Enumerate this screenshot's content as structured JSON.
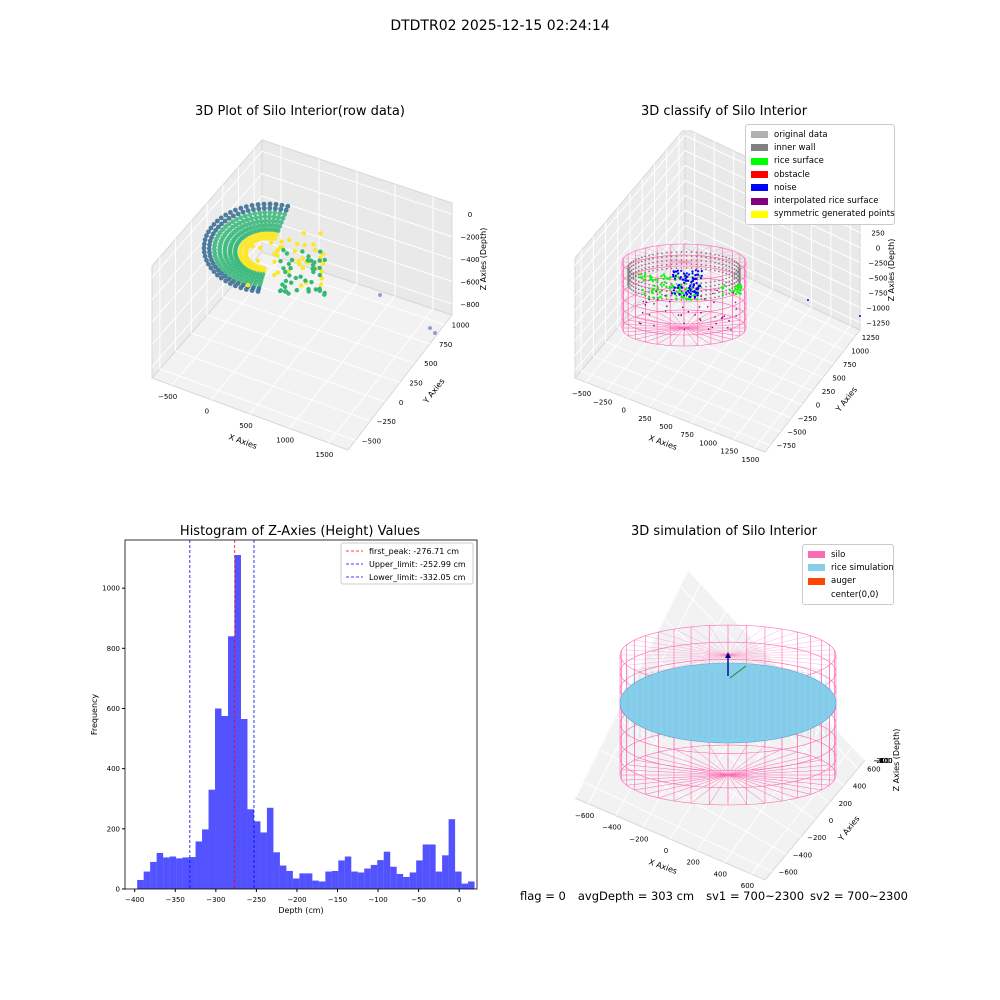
{
  "figure_title": "DTDTR02 2025-12-15 02:24:14",
  "footer": {
    "flag": "flag = 0",
    "avg_depth": "avgDepth = 303 cm",
    "sv1": "sv1 = 700~2300",
    "sv2": "sv2 = 700~2300"
  },
  "chart_data": [
    {
      "type": "scatter",
      "title": "3D Plot of Silo Interior(row data)",
      "xlabel": "X Axies",
      "ylabel": "Y Axies",
      "zlabel": "Z Axies (Depth)",
      "x_ticks": [
        "−500",
        "0",
        "500",
        "1000",
        "1500"
      ],
      "y_ticks": [
        "−500",
        "−250",
        "0",
        "250",
        "500",
        "750",
        "1000"
      ],
      "z_ticks": [
        "0",
        "−200",
        "−400",
        "−600",
        "−800"
      ],
      "colormap": [
        "#31688e",
        "#35b779",
        "#fde725"
      ]
    },
    {
      "type": "scatter",
      "title": "3D classify of Silo Interior",
      "xlabel": "X Axies",
      "ylabel": "Y Axies",
      "zlabel": "Z Axies (Depth)",
      "x_ticks": [
        "−500",
        "−250",
        "0",
        "250",
        "500",
        "750",
        "1000",
        "1250",
        "1500"
      ],
      "y_ticks": [
        "−750",
        "−500",
        "−250",
        "0",
        "250",
        "500",
        "750",
        "1000",
        "1250"
      ],
      "z_ticks": [
        "500",
        "250",
        "0",
        "−250",
        "−500",
        "−750",
        "−1000",
        "−1250"
      ],
      "legend": [
        {
          "label": "original data",
          "color": "#b0b0b0"
        },
        {
          "label": "inner wall",
          "color": "#808080"
        },
        {
          "label": "rice surface",
          "color": "#00ff00"
        },
        {
          "label": "obstacle",
          "color": "#ff0000"
        },
        {
          "label": "noise",
          "color": "#0000ff"
        },
        {
          "label": "interpolated rice surface",
          "color": "#800080"
        },
        {
          "label": "symmetric generated points",
          "color": "#ffff00"
        }
      ],
      "wireframe_color": "#ff69b4"
    },
    {
      "type": "bar",
      "title": "Histogram of Z-Axies (Height) Values",
      "xlabel": "Depth (cm)",
      "ylabel": "Frequency",
      "xlim": [
        -412,
        22
      ],
      "ylim": [
        0,
        1160
      ],
      "x_ticks": [
        -400,
        -350,
        -300,
        -250,
        -200,
        -150,
        -100,
        -50,
        0
      ],
      "x_tick_labels": [
        "−400",
        "−350",
        "−300",
        "−250",
        "−200",
        "−150",
        "−100",
        "−50",
        "0"
      ],
      "y_ticks": [
        0,
        200,
        400,
        600,
        800,
        1000
      ],
      "bin_start": -397,
      "bin_width": 8,
      "bar_color": "#0000ff",
      "bar_alpha": 0.68,
      "values": [
        30,
        58,
        90,
        120,
        105,
        108,
        102,
        105,
        106,
        158,
        198,
        330,
        600,
        575,
        840,
        1110,
        565,
        265,
        225,
        188,
        270,
        122,
        78,
        60,
        35,
        52,
        52,
        28,
        25,
        58,
        60,
        95,
        108,
        58,
        55,
        68,
        80,
        96,
        124,
        74,
        50,
        40,
        55,
        95,
        148,
        148,
        58,
        112,
        232,
        58,
        18,
        25
      ],
      "vlines": [
        {
          "label": "first_peak: -276.71 cm",
          "x": -276.71,
          "color": "#ff0000"
        },
        {
          "label": "Upper_limit: -252.99 cm",
          "x": -252.99,
          "color": "#0000ff"
        },
        {
          "label": "Lower_limit: -332.05 cm",
          "x": -332.05,
          "color": "#0000ff"
        }
      ]
    },
    {
      "type": "scatter",
      "title": "3D simulation of Silo Interior",
      "xlabel": "X Axies",
      "ylabel": "Y Axies",
      "zlabel": "Z Axies (Depth)",
      "x_ticks": [
        "−600",
        "−400",
        "−200",
        "0",
        "200",
        "400",
        "600"
      ],
      "y_ticks": [
        "−600",
        "−400",
        "−200",
        "0",
        "200",
        "400",
        "600"
      ],
      "z_ticks": [
        "200",
        "0",
        "−200",
        "−400",
        "−600",
        "−800"
      ],
      "legend": [
        {
          "label": "silo",
          "color": "#ff69b4"
        },
        {
          "label": "rice simulation",
          "color": "#87ceeb"
        },
        {
          "label": "auger",
          "color": "#ff4500"
        },
        {
          "label": "center(0,0)",
          "color": ""
        }
      ]
    }
  ]
}
